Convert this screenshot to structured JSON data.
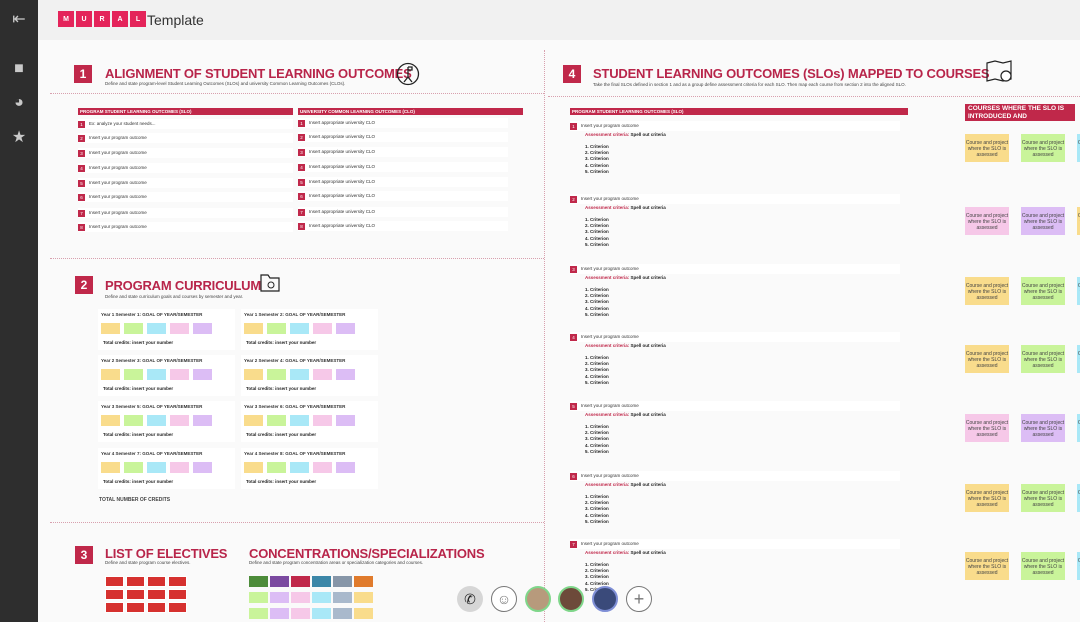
{
  "app": {
    "logo_letters": [
      "M",
      "U",
      "R",
      "A",
      "L"
    ],
    "title": "Template",
    "brand_color": "#e4245a",
    "accent": "#c0284a"
  },
  "sidebar": {
    "tools": [
      {
        "icon": "exit-icon"
      },
      {
        "icon": "sticky-note-icon"
      },
      {
        "icon": "shapes-icon"
      },
      {
        "icon": "star-icon"
      }
    ]
  },
  "section1": {
    "number": "1",
    "title": "ALIGNMENT OF STUDENT LEARNING OUTCOMES",
    "subtitle": "Define and state program-level Student Learning Outcomes (SLOs) and university Common Learning Outcomes (CLOs).",
    "slo_header": "PROGRAM STUDENT LEARNING OUTCOMES  (SLO)",
    "clo_header": "UNIVERSITY COMMON LEARNING OUTCOMES  (CLO)",
    "slo": [
      "Ex: analyze your student needs...",
      "Insert your program outcome",
      "Insert your program outcome",
      "Insert your program outcome",
      "Insert your program outcome",
      "Insert your program outcome",
      "Insert your program outcome",
      "Insert your program outcome"
    ],
    "clo": [
      "Insert appropriate university CLO",
      "Insert appropriate university CLO",
      "Insert appropriate university CLO",
      "Insert appropriate university CLO",
      "Insert appropriate university CLO",
      "Insert appropriate university CLO",
      "Insert appropriate university CLO",
      "Insert appropriate university CLO"
    ]
  },
  "section2": {
    "number": "2",
    "title": "PROGRAM CURRICULUM",
    "subtitle": "Define and state curriculum goals and courses by semester and year.",
    "semesters": [
      "Year 1 Semester 1: GOAL OF YEAR/SEMESTER",
      "Year 1 Semester 2: GOAL OF YEAR/SEMESTER",
      "Year 2 Semester 3: GOAL OF YEAR/SEMESTER",
      "Year 2 Semester 4: GOAL OF YEAR/SEMESTER",
      "Year 3 Semester 5: GOAL OF YEAR/SEMESTER",
      "Year 3 Semester 6: GOAL OF YEAR/SEMESTER",
      "Year 4 Semester 7: GOAL OF YEAR/SEMESTER",
      "Year 4 Semester 8: GOAL OF YEAR/SEMESTER"
    ],
    "total_credits": "Total credits: insert your number",
    "total_number": "TOTAL NUMBER OF CREDITS",
    "sticky_colors": [
      "#f9dc8c",
      "#c9f49a",
      "#a9e8f7",
      "#f6c8e8",
      "#dcbdf5"
    ]
  },
  "section3": {
    "number": "3",
    "title": "LIST OF ELECTIVES",
    "subtitle": "Define and state program course electives.",
    "elective_color": "#d6312f",
    "conc_title": "CONCENTRATIONS/SPECIALIZATIONS",
    "conc_subtitle": "Define and state program concentration areas or specialization categories and courses.",
    "conc_header_colors": [
      "#4d8c3a",
      "#7b4aa0",
      "#c0284a",
      "#3c87a8",
      "#8796a8",
      "#e07b2c"
    ],
    "conc_sticky_colors": [
      "#c9f49a",
      "#dcbdf5",
      "#f6c8e8",
      "#a9e8f7",
      "#a9b9cc",
      "#f9dc8c"
    ]
  },
  "section4": {
    "number": "4",
    "title": "STUDENT LEARNING OUTCOMES (SLOs)  MAPPED TO COURSES",
    "subtitle": "Take the final SLOs defined in section 1 and as a group define assessment criteria for each SLO. Then map each course from section 2 into the aligned SLO.",
    "slo_header": "PROGRAM STUDENT LEARNING OUTCOMES  (SLO)",
    "courses_header": "COURSES WHERE THE SLO IS INTRODUCED  AND",
    "outcome": "Insert your program outcome",
    "criteria_label": "Assessment criteria:",
    "criteria_value": "Spell out criteria",
    "criteria": "1. Criterion\n2. Criterion\n3. Criterion\n4. Criterion\n5. Criterion",
    "sticky_text": "Course and project where the SLO is assessed",
    "rows": [
      [
        "#f9dc8c",
        "#c9f49a",
        "#a9e8f7"
      ],
      [
        "#f6c8e8",
        "#dcbdf5",
        "#f9dc8c"
      ],
      [
        "#f9dc8c",
        "#c9f49a",
        "#a9e8f7"
      ],
      [
        "#f9dc8c",
        "#c9f49a",
        "#a9e8f7"
      ],
      [
        "#f6c8e8",
        "#dcbdf5",
        "#a9e8f7"
      ],
      [
        "#f9dc8c",
        "#c9f49a",
        "#a9e8f7"
      ],
      [
        "#f9dc8c",
        "#c9f49a",
        "#a9e8f7"
      ]
    ]
  },
  "toolbar": {
    "items": [
      {
        "icon": "phone-icon"
      },
      {
        "icon": "emoji-icon"
      },
      {
        "icon": "avatar-1"
      },
      {
        "icon": "avatar-2"
      },
      {
        "icon": "avatar-3"
      },
      {
        "icon": "plus-icon"
      }
    ]
  }
}
